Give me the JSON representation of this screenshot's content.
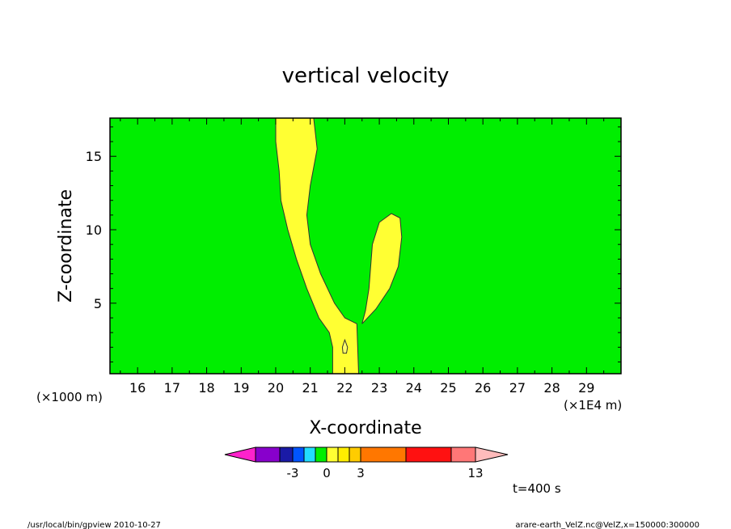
{
  "chart_data": {
    "type": "filled-contour",
    "title": "vertical velocity",
    "xlabel": "X-coordinate",
    "ylabel": "Z-coordinate",
    "x_scale_label": "(×1E4 m)",
    "y_scale_label": "(×1000 m)",
    "xlim": [
      15.2,
      30.0
    ],
    "ylim": [
      0.2,
      17.6
    ],
    "x_ticks": [
      16,
      17,
      18,
      19,
      20,
      21,
      22,
      23,
      24,
      25,
      26,
      27,
      28,
      29
    ],
    "y_ticks": [
      5,
      10,
      15
    ],
    "background_fill": "#00ee00",
    "regions": [
      {
        "name": "updraft-column",
        "fill": "#ffff33",
        "points": [
          [
            20.0,
            17.6
          ],
          [
            21.1,
            17.6
          ],
          [
            21.2,
            15.5
          ],
          [
            21.0,
            13.0
          ],
          [
            20.9,
            11.0
          ],
          [
            21.0,
            9.0
          ],
          [
            21.3,
            7.0
          ],
          [
            21.7,
            5.0
          ],
          [
            22.0,
            4.0
          ],
          [
            22.35,
            3.6
          ],
          [
            22.4,
            0.2
          ],
          [
            21.65,
            0.2
          ],
          [
            21.65,
            2.0
          ],
          [
            21.55,
            3.0
          ],
          [
            21.25,
            4.0
          ],
          [
            20.9,
            6.0
          ],
          [
            20.6,
            8.0
          ],
          [
            20.35,
            10.0
          ],
          [
            20.15,
            12.0
          ],
          [
            20.1,
            14.0
          ],
          [
            20.0,
            16.0
          ]
        ]
      },
      {
        "name": "secondary-updraft",
        "fill": "#ffff33",
        "points": [
          [
            22.5,
            3.6
          ],
          [
            22.9,
            4.6
          ],
          [
            23.3,
            6.0
          ],
          [
            23.55,
            7.5
          ],
          [
            23.65,
            9.5
          ],
          [
            23.6,
            10.8
          ],
          [
            23.35,
            11.1
          ],
          [
            23.0,
            10.5
          ],
          [
            22.8,
            9.0
          ],
          [
            22.75,
            7.5
          ],
          [
            22.7,
            6.0
          ],
          [
            22.6,
            4.5
          ]
        ]
      },
      {
        "name": "small-cell",
        "fill": "#ffff66",
        "points": [
          [
            22.0,
            2.5
          ],
          [
            22.08,
            2.0
          ],
          [
            22.05,
            1.6
          ],
          [
            21.95,
            1.6
          ],
          [
            21.93,
            2.0
          ]
        ]
      }
    ],
    "colorbar": {
      "colors": [
        "#ff22cc",
        "#8800cc",
        "#1a1aa6",
        "#0055ff",
        "#22ddff",
        "#00ee00",
        "#ffff33",
        "#ffee00",
        "#ffcc00",
        "#ff7700",
        "#ff1111",
        "#ff7777",
        "#ffbbbb"
      ],
      "tick_labels": [
        "-3",
        "0",
        "3",
        "13"
      ]
    },
    "time_label": "t=400 s"
  },
  "footer": {
    "left": "/usr/local/bin/gpview   2010-10-27",
    "right": "arare-earth_VelZ.nc@VelZ,x=150000:300000"
  }
}
